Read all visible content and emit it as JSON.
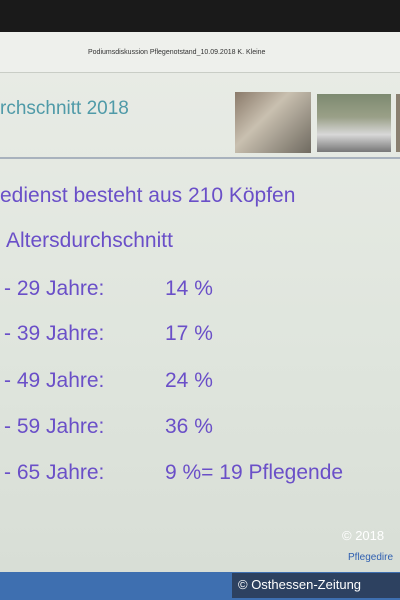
{
  "header": {
    "text": "Podiumsdiskussion Pflegenotstand_10.09.2018 K. Kleine",
    "title": "rchschnitt 2018"
  },
  "body": {
    "intro": "edienst besteht aus 210 Köpfen",
    "subtitle": "Altersdurchschnitt",
    "rows": [
      [
        "- 29 Jahre:",
        "14 %"
      ],
      [
        "- 39 Jahre:",
        "17 %"
      ],
      [
        "- 49 Jahre:",
        "24 %"
      ],
      [
        "- 59 Jahre:",
        "36 %"
      ],
      [
        "- 65 Jahre:",
        "9 %= 19 Pflegende"
      ]
    ]
  },
  "footer": {
    "copyright": "© 2018",
    "author": "Pflegedire",
    "credit": "© Osthessen-Zeitung"
  }
}
